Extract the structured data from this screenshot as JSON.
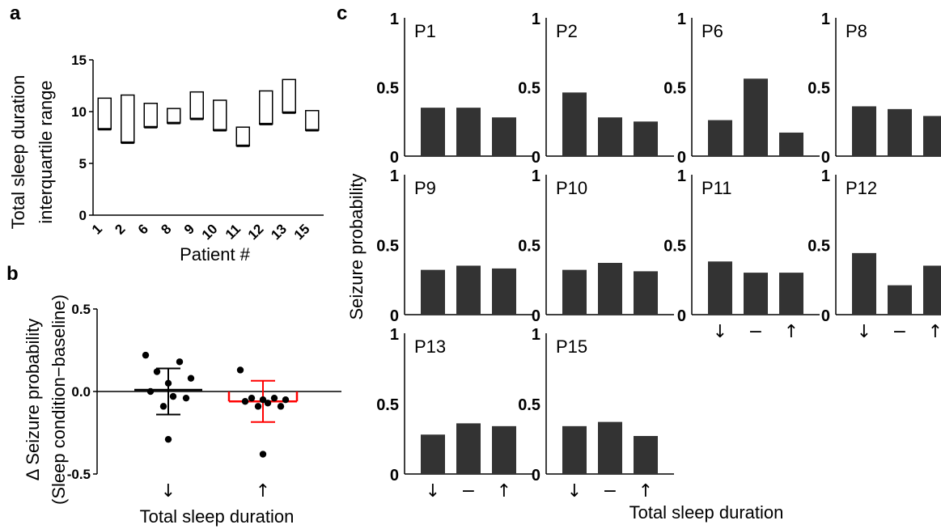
{
  "chart_data": [
    {
      "panel": "a",
      "type": "floating-bar",
      "ylabel": [
        "Total sleep duration",
        "interquartile range"
      ],
      "xlabel": "Patient #",
      "ylim": [
        0,
        15
      ],
      "yticks": [
        "0",
        "5",
        "10",
        "15"
      ],
      "categories": [
        "1",
        "2",
        "6",
        "8",
        "9",
        "10",
        "11",
        "12",
        "13",
        "15"
      ],
      "ranges": [
        [
          8.3,
          11.3
        ],
        [
          7.0,
          11.6
        ],
        [
          8.5,
          10.8
        ],
        [
          8.9,
          10.3
        ],
        [
          9.3,
          11.9
        ],
        [
          8.2,
          11.1
        ],
        [
          6.7,
          8.5
        ],
        [
          8.8,
          12.0
        ],
        [
          9.9,
          13.1
        ],
        [
          8.2,
          10.1
        ]
      ]
    },
    {
      "panel": "b",
      "type": "scatter",
      "ylabel": [
        "Δ Seizure probability",
        "(Sleep condition−baseline)"
      ],
      "xlabel": "Total sleep duration",
      "ylim": [
        -0.5,
        0.5
      ],
      "yticks": [
        "-0.5",
        "0.0",
        "0.5"
      ],
      "categories": [
        "↓",
        "↑"
      ],
      "groups": [
        {
          "category": "↓",
          "color": "#000000",
          "mean": 0.01,
          "sd_upper": 0.14,
          "sd_lower": -0.14,
          "values": [
            0.22,
            0.18,
            0.12,
            0.08,
            0.05,
            0.0,
            -0.03,
            -0.04,
            -0.09,
            -0.29
          ]
        },
        {
          "category": "↑",
          "color": "#ff0000",
          "mean": -0.06,
          "sd_upper": 0.065,
          "sd_lower": -0.185,
          "values": [
            0.13,
            -0.04,
            -0.04,
            -0.05,
            -0.05,
            -0.06,
            -0.07,
            -0.09,
            -0.09,
            -0.38
          ]
        }
      ]
    },
    {
      "panel": "c",
      "type": "bar",
      "ylabel": "Seizure probability",
      "xlabel": "Total sleep duration",
      "ylim": [
        0,
        1
      ],
      "yticks": [
        "0",
        "0.5",
        "1"
      ],
      "categories": [
        "↓",
        "−",
        "↑"
      ],
      "panels": [
        {
          "title": "P1",
          "values": [
            0.35,
            0.35,
            0.28
          ]
        },
        {
          "title": "P2",
          "values": [
            0.46,
            0.28,
            0.25
          ]
        },
        {
          "title": "P6",
          "values": [
            0.26,
            0.56,
            0.17
          ]
        },
        {
          "title": "P8",
          "values": [
            0.36,
            0.34,
            0.29
          ]
        },
        {
          "title": "P9",
          "values": [
            0.32,
            0.35,
            0.33
          ]
        },
        {
          "title": "P10",
          "values": [
            0.32,
            0.37,
            0.31
          ]
        },
        {
          "title": "P11",
          "values": [
            0.38,
            0.3,
            0.3
          ]
        },
        {
          "title": "P12",
          "values": [
            0.44,
            0.21,
            0.35
          ]
        },
        {
          "title": "P13",
          "values": [
            0.28,
            0.36,
            0.34
          ]
        },
        {
          "title": "P15",
          "values": [
            0.34,
            0.37,
            0.27
          ]
        }
      ]
    }
  ],
  "labels": {
    "a": "a",
    "b": "b",
    "c": "c"
  }
}
